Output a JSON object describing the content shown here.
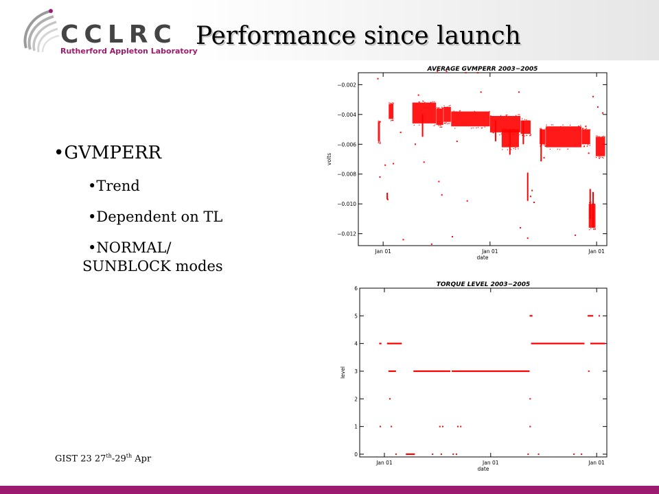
{
  "header": {
    "logo_text": "CCLRC",
    "logo_subtitle": "Rutherford Appleton Laboratory",
    "title": "Performance since launch"
  },
  "bullets": {
    "main": "GVMPERR",
    "sub": [
      "Trend",
      "Dependent on TL",
      "NORMAL/",
      "SUNBLOCK modes"
    ]
  },
  "footer": {
    "text_main": "GIST 23 27",
    "text_sup1": "th",
    "text_mid": "-29",
    "text_sup2": "th",
    "text_end": " Apr"
  },
  "colors": {
    "accent": "#9b1b6e",
    "data": "#ff0000"
  },
  "chart_data": [
    {
      "type": "scatter",
      "title": "AVERAGE GVMPERR 2003−2005",
      "xlabel": "date",
      "ylabel": "volts",
      "xlim": [
        "2003-10-08",
        "2006-02-05"
      ],
      "ylim": [
        -0.0128,
        -0.0012
      ],
      "yticks": [
        -0.002,
        -0.004,
        -0.006,
        -0.008,
        -0.01,
        -0.012
      ],
      "ytick_labels": [
        "−0.002",
        "−0.004",
        "−0.006",
        "−0.008",
        "−0.010",
        "−0.012"
      ],
      "xticks": [
        "2004-01-01",
        "2005-01-01",
        "2006-01-01"
      ],
      "xtick_labels": [
        "Jan 01",
        "Jan 01",
        "Jan 01"
      ],
      "grid": false,
      "bands": [
        {
          "x": [
            "2003-12-14",
            "2003-12-21"
          ],
          "y": [
            -0.0058,
            -0.0045
          ]
        },
        {
          "x": [
            "2004-01-20",
            "2004-02-05"
          ],
          "y": [
            -0.0043,
            -0.0033
          ]
        },
        {
          "x": [
            "2004-04-10",
            "2004-06-30"
          ],
          "y": [
            -0.0046,
            -0.0032
          ]
        },
        {
          "x": [
            "2004-07-01",
            "2004-07-25"
          ],
          "y": [
            -0.0047,
            -0.0036
          ]
        },
        {
          "x": [
            "2004-07-26",
            "2004-08-20"
          ],
          "y": [
            -0.0045,
            -0.0035
          ]
        },
        {
          "x": [
            "2004-08-21",
            "2004-12-31"
          ],
          "y": [
            -0.0048,
            -0.0038
          ]
        },
        {
          "x": [
            "2005-01-01",
            "2005-04-15"
          ],
          "y": [
            -0.0052,
            -0.0041
          ]
        },
        {
          "x": [
            "2005-02-10",
            "2005-04-10"
          ],
          "y": [
            -0.0062,
            -0.005
          ]
        },
        {
          "x": [
            "2005-04-16",
            "2005-05-20"
          ],
          "y": [
            -0.0053,
            -0.0044
          ]
        },
        {
          "x": [
            "2005-06-20",
            "2005-07-10"
          ],
          "y": [
            -0.006,
            -0.005
          ]
        },
        {
          "x": [
            "2005-07-11",
            "2005-11-10"
          ],
          "y": [
            -0.0062,
            -0.0048
          ]
        },
        {
          "x": [
            "2005-11-11",
            "2005-12-10"
          ],
          "y": [
            -0.006,
            -0.005
          ]
        },
        {
          "x": [
            "2005-12-05",
            "2005-12-28"
          ],
          "y": [
            -0.0116,
            -0.01
          ]
        },
        {
          "x": [
            "2005-12-29",
            "2006-01-30"
          ],
          "y": [
            -0.0068,
            -0.0055
          ]
        }
      ],
      "points": [
        [
          "2003-12-14",
          -0.0016
        ],
        [
          "2003-12-21",
          -0.0082
        ],
        [
          "2004-01-08",
          -0.0074
        ],
        [
          "2004-01-15",
          -0.0093
        ],
        [
          "2004-01-17",
          -0.0097
        ],
        [
          "2004-02-05",
          -0.0073
        ],
        [
          "2004-03-10",
          -0.0124
        ],
        [
          "2004-05-01",
          -0.0027
        ],
        [
          "2004-05-20",
          -0.0072
        ],
        [
          "2004-06-15",
          -0.0127
        ],
        [
          "2004-07-05",
          -0.0011
        ],
        [
          "2004-07-10",
          -0.0085
        ],
        [
          "2004-07-20",
          -0.0094
        ],
        [
          "2004-08-05",
          -0.0011
        ],
        [
          "2004-08-25",
          -0.0122
        ],
        [
          "2004-10-10",
          -0.0012
        ],
        [
          "2004-10-15",
          -0.0098
        ],
        [
          "2004-11-20",
          -0.0012
        ],
        [
          "2004-12-01",
          -0.0025
        ],
        [
          "2005-04-10",
          -0.0025
        ],
        [
          "2005-04-15",
          -0.0116
        ],
        [
          "2005-05-10",
          -0.0123
        ],
        [
          "2005-05-20",
          -0.0095
        ],
        [
          "2005-05-25",
          -0.0091
        ],
        [
          "2005-06-01",
          -0.0099
        ],
        [
          "2005-10-20",
          -0.0121
        ],
        [
          "2005-12-05",
          -0.0066
        ],
        [
          "2005-12-20",
          -0.0028
        ],
        [
          "2006-01-05",
          -0.0035
        ],
        [
          "2006-01-22",
          -0.0039
        ],
        [
          "2004-09-10",
          -0.0058
        ],
        [
          "2004-03-01",
          -0.0052
        ],
        [
          "2005-06-25",
          -0.0071
        ],
        [
          "2005-07-05",
          -0.0069
        ],
        [
          "2005-11-25",
          -0.0048
        ],
        [
          "2004-04-20",
          -0.006
        ]
      ],
      "segments": [
        [
          "2004-01-15",
          -0.0093,
          "2004-01-15",
          -0.0097
        ],
        [
          "2004-05-15",
          -0.004,
          "2004-05-15",
          -0.0055
        ],
        [
          "2005-01-20",
          -0.0044,
          "2005-01-20",
          -0.0058
        ],
        [
          "2005-03-10",
          -0.005,
          "2005-03-10",
          -0.0067
        ],
        [
          "2005-04-25",
          -0.0044,
          "2005-04-25",
          -0.006
        ],
        [
          "2005-05-10",
          -0.0079,
          "2005-05-10",
          -0.0098
        ],
        [
          "2005-06-25",
          -0.005,
          "2005-06-25",
          -0.0071
        ],
        [
          "2005-12-10",
          -0.009,
          "2005-12-10",
          -0.011
        ],
        [
          "2005-12-20",
          -0.0092,
          "2005-12-20",
          -0.0116
        ]
      ]
    },
    {
      "type": "scatter",
      "title": "TORQUE LEVEL 2003−2005",
      "xlabel": "date",
      "ylabel": "level",
      "xlim": [
        "2003-10-08",
        "2006-02-05"
      ],
      "ylim": [
        -0.1,
        6
      ],
      "yticks": [
        0,
        1,
        2,
        3,
        4,
        5,
        6
      ],
      "ytick_labels": [
        "0",
        "1",
        "2",
        "3",
        "4",
        "5",
        "6"
      ],
      "xticks": [
        "2004-01-01",
        "2005-01-01",
        "2006-01-01"
      ],
      "xtick_labels": [
        "Jan 01",
        "Jan 01",
        "Jan 01"
      ],
      "grid": false,
      "runs": [
        {
          "x": [
            "2003-12-14",
            "2003-12-22"
          ],
          "y": 4
        },
        {
          "x": [
            "2004-01-10",
            "2004-03-01"
          ],
          "y": 4
        },
        {
          "x": [
            "2004-01-15",
            "2004-02-10"
          ],
          "y": 3
        },
        {
          "x": [
            "2004-04-10",
            "2004-08-15"
          ],
          "y": 3
        },
        {
          "x": [
            "2004-08-20",
            "2005-05-15"
          ],
          "y": 3
        },
        {
          "x": [
            "2005-05-20",
            "2005-11-20"
          ],
          "y": 4
        },
        {
          "x": [
            "2005-12-10",
            "2006-01-30"
          ],
          "y": 4
        },
        {
          "x": [
            "2005-12-01",
            "2005-12-20"
          ],
          "y": 5
        },
        {
          "x": [
            "2005-05-15",
            "2005-05-25"
          ],
          "y": 5
        },
        {
          "x": [
            "2004-03-15",
            "2004-04-15"
          ],
          "y": 0
        }
      ],
      "points": [
        [
          "2003-12-18",
          1
        ],
        [
          "2004-01-20",
          2
        ],
        [
          "2004-01-25",
          1
        ],
        [
          "2004-07-10",
          1
        ],
        [
          "2004-07-20",
          1
        ],
        [
          "2004-09-10",
          1
        ],
        [
          "2004-09-20",
          1
        ],
        [
          "2005-05-17",
          2
        ],
        [
          "2005-05-17",
          1
        ],
        [
          "2005-12-05",
          3
        ],
        [
          "2006-01-10",
          5
        ],
        [
          "2004-02-10",
          0
        ],
        [
          "2004-06-15",
          0
        ],
        [
          "2004-07-15",
          0
        ],
        [
          "2004-08-25",
          0
        ],
        [
          "2004-09-05",
          0
        ],
        [
          "2005-05-10",
          0
        ],
        [
          "2005-06-15",
          0
        ],
        [
          "2005-10-15",
          0
        ],
        [
          "2005-11-10",
          0
        ]
      ]
    }
  ]
}
